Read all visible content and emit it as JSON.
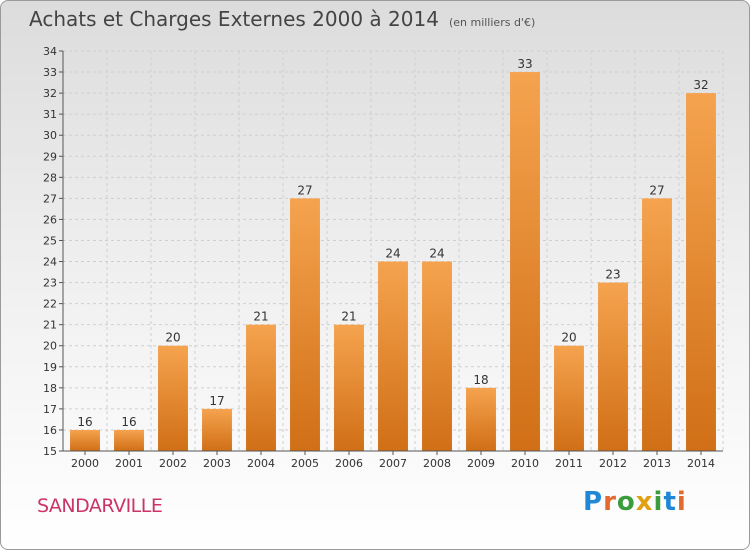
{
  "header": {
    "title": "Achats et Charges Externes 2000 à 2014",
    "subtitle": "(en milliers d'€)"
  },
  "footer": {
    "city": "SANDARVILLE",
    "logo": "Proxiti"
  },
  "colors": {
    "bar_top": "#f5a34f",
    "bar_bottom": "#d06f16",
    "grid": "#cfcfcf"
  },
  "chart_data": {
    "type": "bar",
    "title": "Achats et Charges Externes 2000 à 2014",
    "subtitle": "(en milliers d'€)",
    "xlabel": "",
    "ylabel": "",
    "categories": [
      "2000",
      "2001",
      "2002",
      "2003",
      "2004",
      "2005",
      "2006",
      "2007",
      "2008",
      "2009",
      "2010",
      "2011",
      "2012",
      "2013",
      "2014"
    ],
    "values": [
      16,
      16,
      20,
      17,
      21,
      27,
      21,
      24,
      24,
      18,
      33,
      20,
      23,
      27,
      32
    ],
    "ylim": [
      15,
      34
    ],
    "yticks": [
      15,
      16,
      17,
      18,
      19,
      20,
      21,
      22,
      23,
      24,
      25,
      26,
      27,
      28,
      29,
      30,
      31,
      32,
      33,
      34
    ],
    "grid": true,
    "legend": "none"
  }
}
